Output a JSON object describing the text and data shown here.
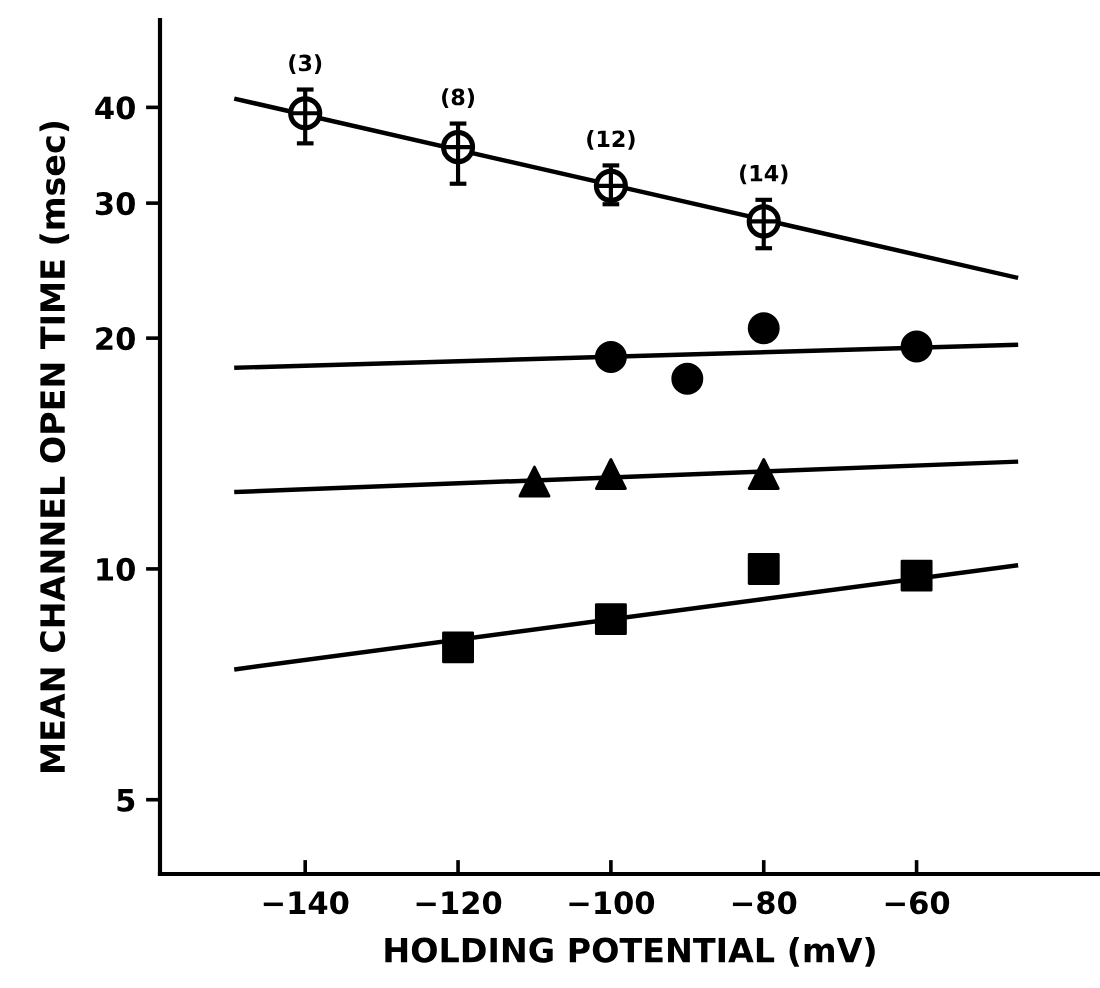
{
  "chart_data": {
    "type": "scatter",
    "xlabel": "HOLDING POTENTIAL (mV)",
    "ylabel": "MEAN CHANNEL OPEN TIME (msec)",
    "log": "y",
    "xlim": [
      -159,
      -36
    ],
    "ylim": [
      4,
      52
    ],
    "xticks": [
      {
        "value": -140,
        "label": "−140"
      },
      {
        "value": -120,
        "label": "−120"
      },
      {
        "value": -100,
        "label": "−100"
      },
      {
        "value": -80,
        "label": "−80"
      },
      {
        "value": -60,
        "label": "−60"
      }
    ],
    "yticks": [
      5,
      10,
      20,
      30,
      40
    ],
    "grid": false,
    "legend": false,
    "series": [
      {
        "marker": "circle",
        "color": "#000000",
        "x": [
          -140,
          -120,
          -100,
          -80
        ],
        "values": [
          39.3,
          35.5,
          31.6,
          28.4
        ],
        "errors": [
          [
            35.9,
            42.2
          ],
          [
            31.8,
            38.1
          ],
          [
            29.9,
            33.6
          ],
          [
            26.2,
            30.3
          ]
        ]
      },
      {
        "type": "line",
        "marker": "none",
        "color": "#000000",
        "x": [
          -149,
          -47
        ],
        "values": [
          41,
          24
        ]
      },
      {
        "marker": "circle",
        "color": "#000000",
        "x": [
          -100,
          -90,
          -80,
          -60
        ],
        "values": [
          18.9,
          17.7,
          20.6,
          19.5
        ]
      },
      {
        "type": "line",
        "marker": "none",
        "color": "#000000",
        "x": [
          -149,
          -47
        ],
        "values": [
          18.3,
          19.6
        ]
      },
      {
        "marker": "triangle",
        "color": "#000000",
        "x": [
          -110,
          -100,
          -80
        ],
        "values": [
          13.0,
          13.3,
          13.3
        ]
      },
      {
        "type": "line",
        "marker": "none",
        "color": "#000000",
        "x": [
          -149,
          -47
        ],
        "values": [
          12.6,
          13.8
        ]
      },
      {
        "marker": "square",
        "color": "#000000",
        "x": [
          -120,
          -100,
          -80,
          -60
        ],
        "values": [
          7.9,
          8.6,
          10.0,
          9.8
        ]
      },
      {
        "type": "line",
        "marker": "none",
        "color": "#000000",
        "x": [
          -149,
          -47
        ],
        "values": [
          7.4,
          10.1
        ]
      }
    ],
    "annotations": [
      {
        "text": "(3)",
        "x": -140,
        "y": 42.2
      },
      {
        "text": "(8)",
        "x": -120,
        "y": 38.1
      },
      {
        "text": "(12)",
        "x": -100,
        "y": 33.6
      },
      {
        "text": "(14)",
        "x": -80,
        "y": 30.3
      }
    ]
  }
}
